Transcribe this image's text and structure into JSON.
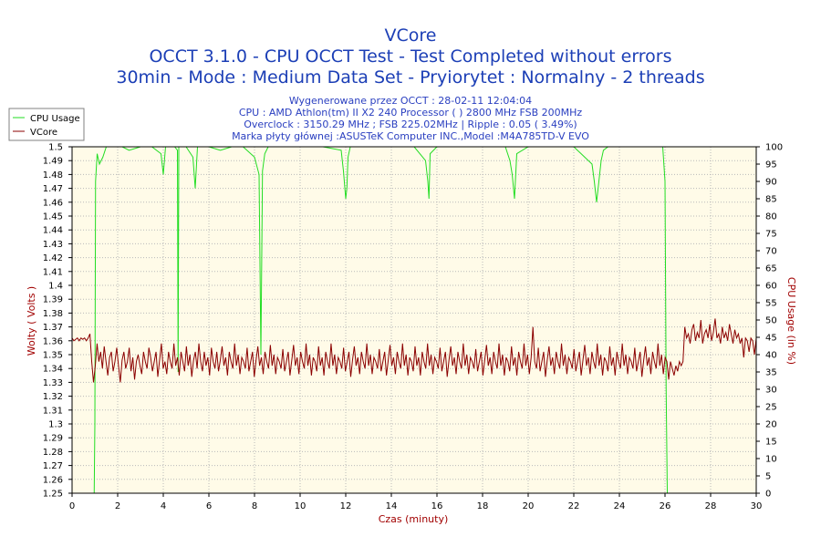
{
  "chart_data": {
    "type": "line",
    "title": "VCore",
    "subtitle_lines": [
      "OCCT 3.1.0 - CPU OCCT Test - Test Completed without errors",
      "30min - Mode : Medium Data Set - Pryiorytet : Normalny - 2 threads"
    ],
    "info_lines": [
      "Wygenerowane przez OCCT : 28-02-11 12:04:04",
      "CPU : AMD Athlon(tm) II X2 240 Processor (  ) 2800 MHz FSB 200MHz",
      "Overclock : 3150.29 MHz ; FSB 225.02MHz | Ripple : 0.05 ( 3.49%)",
      "Marka płyty głównej :ASUSTeK Computer INC.,Model :M4A785TD-V EVO"
    ],
    "xlabel": "Czas (minuty)",
    "ylabel": "Wolty ( Volts )",
    "y2label": "CPU Usage (in %)",
    "xlim": [
      0,
      30
    ],
    "ylim": [
      1.25,
      1.5
    ],
    "y2lim": [
      0,
      100
    ],
    "x_ticks": [
      "0",
      "2",
      "4",
      "6",
      "8",
      "10",
      "12",
      "14",
      "16",
      "18",
      "20",
      "22",
      "24",
      "26",
      "28",
      "30"
    ],
    "y_ticks": [
      "1.25",
      "1.26",
      "1.27",
      "1.28",
      "1.29",
      "1.3",
      "1.31",
      "1.32",
      "1.33",
      "1.34",
      "1.35",
      "1.36",
      "1.37",
      "1.38",
      "1.39",
      "1.4",
      "1.41",
      "1.42",
      "1.43",
      "1.44",
      "1.45",
      "1.46",
      "1.47",
      "1.48",
      "1.49",
      "1.5"
    ],
    "y2_ticks": [
      "0",
      "5",
      "10",
      "15",
      "20",
      "25",
      "30",
      "35",
      "40",
      "45",
      "50",
      "55",
      "60",
      "65",
      "70",
      "75",
      "80",
      "85",
      "90",
      "95",
      "100"
    ],
    "grid": true,
    "legend_position": "top-left, outside plot",
    "colors": {
      "background": "#fffbe8",
      "grid": "#b9b9b9",
      "cpu_usage": "#22dd22",
      "vcore": "#8b0000",
      "title": "#1c3fb6",
      "axis_label": "#a10000"
    },
    "series": [
      {
        "name": "CPU Usage",
        "axis": "right",
        "x": [
          0,
          0.97,
          1.0,
          1.03,
          1.1,
          1.2,
          1.35,
          1.5,
          2.2,
          2.5,
          3.0,
          3.5,
          3.9,
          4.0,
          4.1,
          4.5,
          4.62,
          4.65,
          4.68,
          5.0,
          5.3,
          5.4,
          5.5,
          6.0,
          6.5,
          7.0,
          7.5,
          8.0,
          8.2,
          8.28,
          8.35,
          8.45,
          8.6,
          9.0,
          10.0,
          11.0,
          11.8,
          11.9,
          12.0,
          12.05,
          12.1,
          12.2,
          12.3,
          12.5,
          13.0,
          14.0,
          15.0,
          15.5,
          15.6,
          15.65,
          15.7,
          16.0,
          17.0,
          18.0,
          19.0,
          19.2,
          19.3,
          19.4,
          19.5,
          20.0,
          21.0,
          22.0,
          22.8,
          22.9,
          23.0,
          23.1,
          23.2,
          23.3,
          23.5,
          24.0,
          25.0,
          25.9,
          26.0,
          26.05,
          26.1
        ],
        "values": [
          null,
          0,
          20,
          90,
          98,
          95,
          97,
          100,
          100,
          99,
          100,
          100,
          98,
          92,
          100,
          100,
          99,
          35,
          100,
          100,
          97,
          88,
          100,
          100,
          99,
          100,
          100,
          97,
          92,
          40,
          93,
          98,
          100,
          100,
          100,
          100,
          99,
          93,
          85,
          88,
          97,
          100,
          100,
          100,
          100,
          100,
          100,
          96,
          90,
          85,
          98,
          100,
          100,
          100,
          100,
          96,
          92,
          85,
          98,
          100,
          100,
          100,
          95,
          90,
          84,
          90,
          96,
          99,
          100,
          100,
          100,
          100,
          90,
          30,
          0
        ]
      },
      {
        "name": "VCore",
        "axis": "left",
        "x_start": 0,
        "x_end": 30,
        "values": [
          1.362,
          1.36,
          1.361,
          1.362,
          1.36,
          1.362,
          1.361,
          1.362,
          1.36,
          1.362,
          1.365,
          1.345,
          1.33,
          1.342,
          1.358,
          1.345,
          1.352,
          1.34,
          1.356,
          1.345,
          1.335,
          1.348,
          1.352,
          1.338,
          1.345,
          1.355,
          1.342,
          1.33,
          1.346,
          1.352,
          1.34,
          1.345,
          1.355,
          1.338,
          1.348,
          1.332,
          1.345,
          1.35,
          1.342,
          1.336,
          1.352,
          1.345,
          1.34,
          1.355,
          1.348,
          1.338,
          1.345,
          1.352,
          1.334,
          1.346,
          1.358,
          1.34,
          1.345,
          1.336,
          1.352,
          1.345,
          1.34,
          1.358,
          1.342,
          1.348,
          1.335,
          1.352,
          1.345,
          1.338,
          1.356,
          1.342,
          1.35,
          1.334,
          1.346,
          1.352,
          1.34,
          1.358,
          1.345,
          1.338,
          1.352,
          1.342,
          1.348,
          1.335,
          1.355,
          1.345,
          1.34,
          1.352,
          1.338,
          1.346,
          1.356,
          1.342,
          1.348,
          1.335,
          1.352,
          1.345,
          1.34,
          1.358,
          1.342,
          1.35,
          1.336,
          1.348,
          1.345,
          1.34,
          1.355,
          1.338,
          1.345,
          1.352,
          1.334,
          1.346,
          1.356,
          1.342,
          1.348,
          1.336,
          1.352,
          1.345,
          1.34,
          1.357,
          1.342,
          1.35,
          1.336,
          1.348,
          1.345,
          1.34,
          1.354,
          1.338,
          1.345,
          1.352,
          1.335,
          1.346,
          1.357,
          1.342,
          1.348,
          1.336,
          1.352,
          1.345,
          1.34,
          1.358,
          1.342,
          1.35,
          1.335,
          1.348,
          1.345,
          1.338,
          1.356,
          1.342,
          1.348,
          1.335,
          1.352,
          1.345,
          1.34,
          1.358,
          1.342,
          1.35,
          1.336,
          1.348,
          1.345,
          1.34,
          1.355,
          1.338,
          1.345,
          1.352,
          1.334,
          1.346,
          1.356,
          1.342,
          1.348,
          1.336,
          1.352,
          1.345,
          1.34,
          1.358,
          1.342,
          1.35,
          1.336,
          1.348,
          1.345,
          1.34,
          1.354,
          1.338,
          1.345,
          1.352,
          1.335,
          1.346,
          1.357,
          1.342,
          1.348,
          1.336,
          1.352,
          1.345,
          1.34,
          1.358,
          1.342,
          1.35,
          1.335,
          1.348,
          1.345,
          1.338,
          1.356,
          1.342,
          1.348,
          1.335,
          1.352,
          1.345,
          1.34,
          1.358,
          1.342,
          1.35,
          1.336,
          1.348,
          1.345,
          1.34,
          1.355,
          1.338,
          1.345,
          1.352,
          1.334,
          1.346,
          1.356,
          1.342,
          1.348,
          1.336,
          1.352,
          1.345,
          1.34,
          1.358,
          1.342,
          1.35,
          1.336,
          1.348,
          1.345,
          1.34,
          1.354,
          1.338,
          1.345,
          1.352,
          1.335,
          1.346,
          1.357,
          1.342,
          1.348,
          1.336,
          1.352,
          1.345,
          1.34,
          1.358,
          1.342,
          1.35,
          1.335,
          1.348,
          1.345,
          1.338,
          1.356,
          1.342,
          1.348,
          1.335,
          1.352,
          1.345,
          1.34,
          1.358,
          1.342,
          1.35,
          1.336,
          1.348,
          1.37,
          1.345,
          1.34,
          1.355,
          1.338,
          1.345,
          1.352,
          1.334,
          1.346,
          1.356,
          1.342,
          1.348,
          1.336,
          1.352,
          1.345,
          1.34,
          1.358,
          1.342,
          1.35,
          1.336,
          1.348,
          1.345,
          1.34,
          1.354,
          1.338,
          1.345,
          1.352,
          1.335,
          1.346,
          1.357,
          1.342,
          1.348,
          1.336,
          1.352,
          1.345,
          1.34,
          1.358,
          1.342,
          1.35,
          1.335,
          1.348,
          1.345,
          1.338,
          1.356,
          1.342,
          1.348,
          1.335,
          1.352,
          1.345,
          1.34,
          1.358,
          1.342,
          1.35,
          1.336,
          1.348,
          1.345,
          1.34,
          1.355,
          1.338,
          1.345,
          1.352,
          1.334,
          1.346,
          1.356,
          1.342,
          1.348,
          1.336,
          1.352,
          1.345,
          1.34,
          1.358,
          1.342,
          1.35,
          1.336,
          1.348,
          1.345,
          1.332,
          1.345,
          1.34,
          1.335,
          1.342,
          1.338,
          1.345,
          1.342,
          1.345,
          1.37,
          1.362,
          1.365,
          1.358,
          1.368,
          1.372,
          1.36,
          1.366,
          1.362,
          1.375,
          1.358,
          1.365,
          1.368,
          1.362,
          1.372,
          1.36,
          1.366,
          1.376,
          1.362,
          1.365,
          1.358,
          1.37,
          1.362,
          1.366,
          1.36,
          1.372,
          1.365,
          1.358,
          1.368,
          1.362,
          1.365,
          1.358,
          1.362,
          1.348,
          1.362,
          1.36,
          1.352,
          1.362,
          1.36,
          1.35,
          1.362
        ]
      }
    ]
  }
}
